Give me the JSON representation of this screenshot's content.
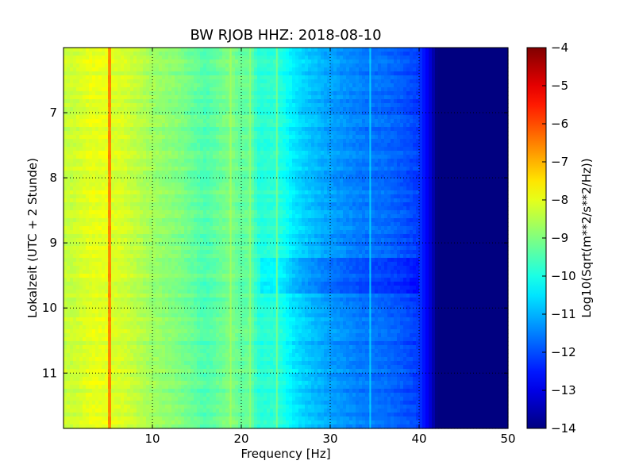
{
  "chart_data": {
    "type": "heatmap",
    "title": "BW RJOB HHZ: 2018-08-10",
    "xlabel": "Frequency [Hz]",
    "ylabel": "Lokalzeit (UTC + 2 Stunde)",
    "xlim": [
      0,
      50
    ],
    "ylim": [
      6,
      11.85
    ],
    "y_inverted": true,
    "xticks": [
      10,
      20,
      30,
      40,
      50
    ],
    "yticks": [
      7,
      8,
      9,
      10,
      11
    ],
    "grid": true,
    "colorbar": {
      "label": "Log10(Sqrt(m**2/s**2/Hz))",
      "range": [
        -14,
        -4
      ],
      "ticks": [
        -4,
        -5,
        -6,
        -7,
        -8,
        -9,
        -10,
        -11,
        -12,
        -13,
        -14
      ],
      "colormap": "jet"
    },
    "spectral_profile": {
      "frequency_hz": [
        0.2,
        1,
        3,
        5,
        5.2,
        5.5,
        7,
        10,
        13,
        16,
        18.8,
        20,
        21,
        22,
        24,
        26,
        28,
        30,
        32,
        34,
        36,
        38,
        40,
        41,
        42,
        44,
        50
      ],
      "log_amplitude": [
        -8.3,
        -8.3,
        -8.0,
        -8.0,
        -6.5,
        -8.1,
        -8.2,
        -8.7,
        -9.0,
        -9.5,
        -9.0,
        -9.3,
        -9.2,
        -9.9,
        -9.8,
        -10.5,
        -10.9,
        -11.2,
        -11.4,
        -11.6,
        -11.7,
        -11.9,
        -12.2,
        -12.9,
        -14.0,
        -14.0,
        -14.0
      ]
    },
    "spectral_lines": [
      {
        "frequency_hz": 5.2,
        "log_amplitude": -6.5
      },
      {
        "frequency_hz": 18.8,
        "log_amplitude": -8.6
      },
      {
        "frequency_hz": 21.0,
        "log_amplitude": -8.8
      },
      {
        "frequency_hz": 24.0,
        "log_amplitude": -9.0
      },
      {
        "frequency_hz": 34.5,
        "log_amplitude": -10.6
      }
    ],
    "time_anomaly": {
      "time_start": 9.25,
      "time_end": 9.75,
      "log_amplitude_offset": -0.4
    }
  }
}
